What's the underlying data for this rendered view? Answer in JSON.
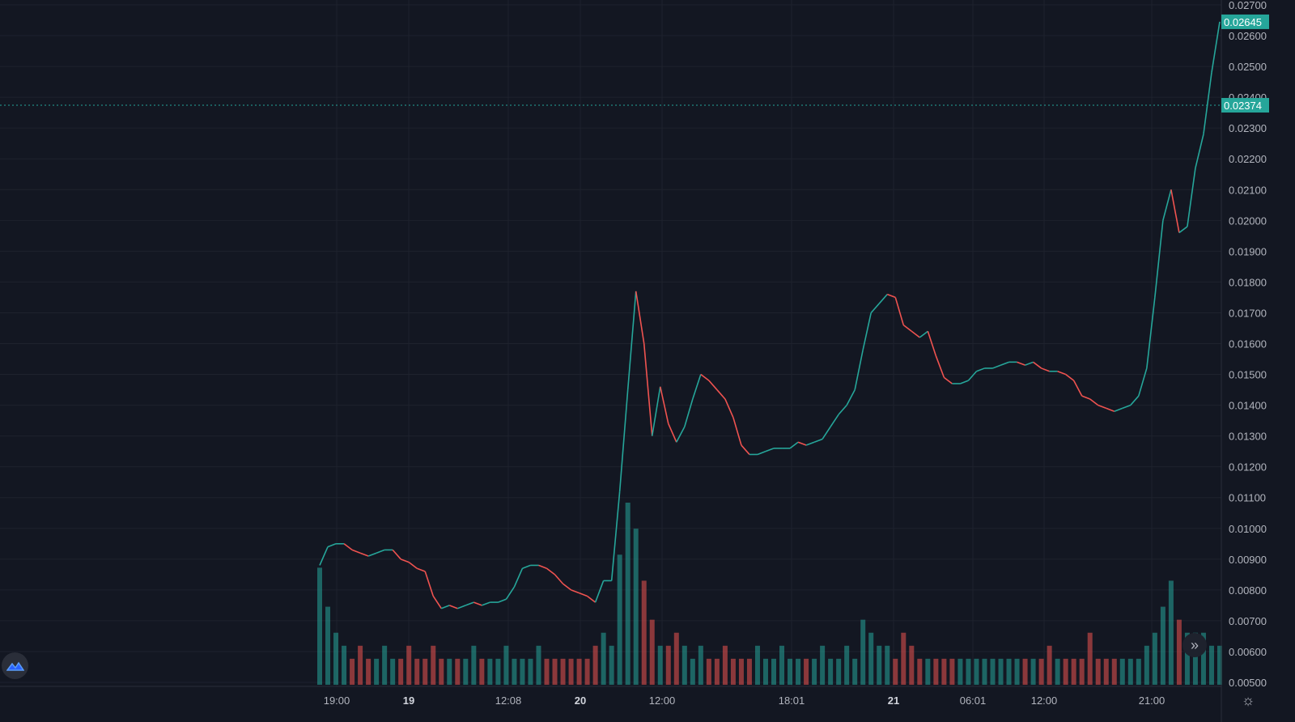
{
  "chart_data": {
    "type": "line",
    "title": "",
    "xlabel": "",
    "ylabel": "",
    "ylim": [
      0.005,
      0.027
    ],
    "grid": true,
    "price_scale_position": "right",
    "x_tick_labels": [
      "19:00",
      "19",
      "12:08",
      "20",
      "12:00",
      "18:01",
      "21",
      "06:01",
      "12:00",
      "21:00"
    ],
    "x_tick_bold": [
      false,
      true,
      false,
      true,
      false,
      false,
      true,
      false,
      false,
      false
    ],
    "y_tick_labels": [
      "0.02700",
      "0.02600",
      "0.02500",
      "0.02400",
      "0.02300",
      "0.02200",
      "0.02100",
      "0.02000",
      "0.01900",
      "0.01800",
      "0.01700",
      "0.01600",
      "0.01500",
      "0.01400",
      "0.01300",
      "0.01200",
      "0.01100",
      "0.01000",
      "0.00900",
      "0.00800",
      "0.00700",
      "0.00600",
      "0.00500"
    ],
    "series": [
      {
        "values": [
          0.0088,
          0.0094,
          0.0095,
          0.0095,
          0.0093,
          0.0092,
          0.0091,
          0.0092,
          0.0093,
          0.0093,
          0.009,
          0.0089,
          0.0087,
          0.0086,
          0.0078,
          0.0074,
          0.0075,
          0.0074,
          0.0075,
          0.0076,
          0.0075,
          0.0076,
          0.0076,
          0.0077,
          0.0081,
          0.0087,
          0.0088,
          0.0088,
          0.0087,
          0.0085,
          0.0082,
          0.008,
          0.0079,
          0.0078,
          0.0076,
          0.0083,
          0.0083,
          0.0112,
          0.0145,
          0.0177,
          0.016,
          0.013,
          0.0146,
          0.0134,
          0.0128,
          0.0133,
          0.0142,
          0.015,
          0.0148,
          0.0145,
          0.0142,
          0.0136,
          0.0127,
          0.0124,
          0.0124,
          0.0125,
          0.0126,
          0.0126,
          0.0126,
          0.0128,
          0.0127,
          0.0128,
          0.0129,
          0.0133,
          0.0137,
          0.014,
          0.0145,
          0.0158,
          0.017,
          0.0173,
          0.0176,
          0.0175,
          0.0166,
          0.0164,
          0.0162,
          0.0164,
          0.0156,
          0.0149,
          0.0147,
          0.0147,
          0.0148,
          0.0151,
          0.0152,
          0.0152,
          0.0153,
          0.0154,
          0.0154,
          0.0153,
          0.0154,
          0.0152,
          0.0151,
          0.0151,
          0.015,
          0.0148,
          0.0143,
          0.0142,
          0.014,
          0.0139,
          0.0138,
          0.0139,
          0.014,
          0.0143,
          0.0152,
          0.0175,
          0.02,
          0.021,
          0.0196,
          0.0198,
          0.0217,
          0.0228,
          0.0248,
          0.02645
        ]
      },
      {
        "name": "Volume",
        "values": [
          9,
          6,
          4,
          3,
          2,
          3,
          2,
          2,
          3,
          2,
          2,
          3,
          2,
          2,
          3,
          2,
          2,
          2,
          2,
          3,
          2,
          2,
          2,
          3,
          2,
          2,
          2,
          3,
          2,
          2,
          2,
          2,
          2,
          2,
          3,
          4,
          3,
          10,
          14,
          12,
          8,
          5,
          3,
          3,
          4,
          3,
          2,
          3,
          2,
          2,
          3,
          2,
          2,
          2,
          3,
          2,
          2,
          3,
          2,
          2,
          2,
          2,
          3,
          2,
          2,
          3,
          2,
          5,
          4,
          3,
          3,
          2,
          4,
          3,
          2,
          2,
          2,
          2,
          2,
          2,
          2,
          2,
          2,
          2,
          2,
          2,
          2,
          2,
          2,
          2,
          3,
          2,
          2,
          2,
          2,
          4,
          2,
          2,
          2,
          2,
          2,
          2,
          3,
          4,
          6,
          8,
          5,
          4,
          4,
          4,
          3,
          3
        ]
      }
    ],
    "last_price": "0.02645",
    "price_line": "0.02374",
    "colors": {
      "background": "#131722",
      "grid": "#1e222d",
      "up": "#26a69a",
      "down": "#ef5350",
      "axis_text": "#b2b5be",
      "badge": "#26a69a"
    }
  },
  "icons": {
    "logo": "tradingview-cloud-logo",
    "scroll": "double-chevron-right-icon",
    "settings": "gear-icon"
  },
  "ui": {
    "scroll_symbol": "»",
    "settings_symbol": "☼"
  }
}
